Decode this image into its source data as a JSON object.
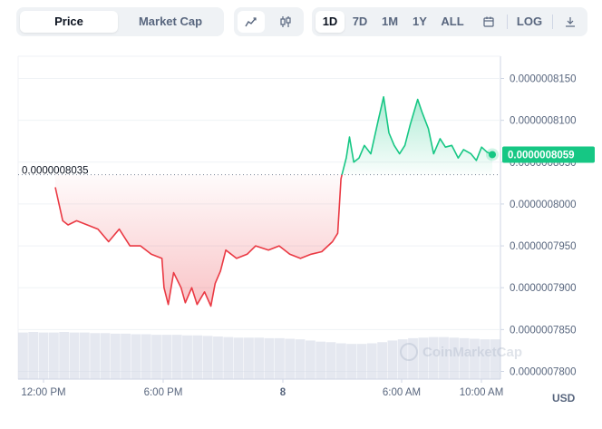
{
  "toolbar": {
    "metric_tabs": [
      "Price",
      "Market Cap"
    ],
    "active_metric": "Price",
    "chart_type_icons": [
      "line-chart-icon",
      "candlestick-icon"
    ],
    "range_buttons": [
      "1D",
      "7D",
      "1M",
      "1Y",
      "ALL"
    ],
    "active_range": "1D",
    "calendar_icon": "calendar-icon",
    "log_label": "LOG",
    "download_icon": "download-icon"
  },
  "currency_label": "USD",
  "watermark": "CoinMarketCap",
  "colors": {
    "up": "#16c784",
    "down": "#ea3943",
    "volume": "#cfd6e4",
    "grid": "#eff2f5",
    "axis_text": "#58667e"
  },
  "chart_data": {
    "type": "line",
    "title": "",
    "xlabel": "",
    "ylabel": "",
    "ylim": [
      7.8e-07,
      8.16e-07
    ],
    "y_ticks": [
      "0.0000008150",
      "0.0000008100",
      "0.0000008050",
      "0.0000008000",
      "0.0000007950",
      "0.0000007900",
      "0.0000007850",
      "0.0000007800"
    ],
    "x_ticks": [
      "12:00 PM",
      "6:00 PM",
      "8",
      "6:00 AM",
      "10:00 AM"
    ],
    "reference_line": {
      "label": "0.0000008035",
      "value": 8.035e-07
    },
    "current_price": {
      "label": "0.0000008059",
      "value": 8.059e-07
    },
    "series": [
      {
        "values": [
          [
            0,
            8.02e-07
          ],
          [
            0.7,
            7.98e-07
          ],
          [
            1.2,
            7.975e-07
          ],
          [
            2,
            7.98e-07
          ],
          [
            3,
            7.975e-07
          ],
          [
            4,
            7.97e-07
          ],
          [
            5,
            7.955e-07
          ],
          [
            6,
            7.97e-07
          ],
          [
            7,
            7.95e-07
          ],
          [
            8,
            7.95e-07
          ],
          [
            9,
            7.94e-07
          ],
          [
            10,
            7.935e-07
          ],
          [
            10.2,
            7.9e-07
          ],
          [
            10.6,
            7.88e-07
          ],
          [
            11.1,
            7.918e-07
          ],
          [
            11.8,
            7.9e-07
          ],
          [
            12.2,
            7.882e-07
          ],
          [
            12.8,
            7.9e-07
          ],
          [
            13.3,
            7.88e-07
          ],
          [
            14,
            7.895e-07
          ],
          [
            14.6,
            7.878e-07
          ],
          [
            15,
            7.905e-07
          ],
          [
            15.5,
            7.92e-07
          ],
          [
            16,
            7.945e-07
          ],
          [
            17,
            7.935e-07
          ],
          [
            18,
            7.94e-07
          ],
          [
            18.8,
            7.95e-07
          ],
          [
            20,
            7.945e-07
          ],
          [
            21,
            7.95e-07
          ],
          [
            22,
            7.94e-07
          ],
          [
            23,
            7.935e-07
          ],
          [
            24,
            7.94e-07
          ],
          [
            25,
            7.943e-07
          ],
          [
            26,
            7.955e-07
          ],
          [
            26.5,
            7.965e-07
          ],
          [
            26.8,
            8.03e-07
          ],
          [
            27.3,
            8.055e-07
          ],
          [
            27.6,
            8.08e-07
          ],
          [
            28,
            8.05e-07
          ],
          [
            28.5,
            8.055e-07
          ],
          [
            29,
            8.07e-07
          ],
          [
            29.6,
            8.06e-07
          ],
          [
            30.3,
            8.1e-07
          ],
          [
            30.8,
            8.128e-07
          ],
          [
            31.3,
            8.085e-07
          ],
          [
            31.8,
            8.07e-07
          ],
          [
            32.3,
            8.06e-07
          ],
          [
            32.8,
            8.07e-07
          ],
          [
            33.3,
            8.095e-07
          ],
          [
            34,
            8.125e-07
          ],
          [
            34.4,
            8.11e-07
          ],
          [
            35,
            8.09e-07
          ],
          [
            35.5,
            8.06e-07
          ],
          [
            36.1,
            8.078e-07
          ],
          [
            36.6,
            8.068e-07
          ],
          [
            37.2,
            8.07e-07
          ],
          [
            37.8,
            8.055e-07
          ],
          [
            38.3,
            8.065e-07
          ],
          [
            39,
            8.06e-07
          ],
          [
            39.5,
            8.052e-07
          ],
          [
            40,
            8.068e-07
          ],
          [
            40.5,
            8.062e-07
          ],
          [
            41,
            8.059e-07
          ]
        ]
      }
    ],
    "volume_relative": [
      0.82,
      0.83,
      0.82,
      0.82,
      0.83,
      0.82,
      0.82,
      0.81,
      0.81,
      0.8,
      0.8,
      0.79,
      0.79,
      0.78,
      0.78,
      0.78,
      0.77,
      0.77,
      0.76,
      0.75,
      0.74,
      0.73,
      0.73,
      0.73,
      0.72,
      0.72,
      0.71,
      0.7,
      0.68,
      0.66,
      0.65,
      0.63,
      0.62,
      0.62,
      0.63,
      0.65,
      0.68,
      0.7,
      0.72,
      0.73,
      0.74,
      0.74,
      0.73,
      0.72,
      0.71,
      0.7,
      0.7
    ]
  }
}
